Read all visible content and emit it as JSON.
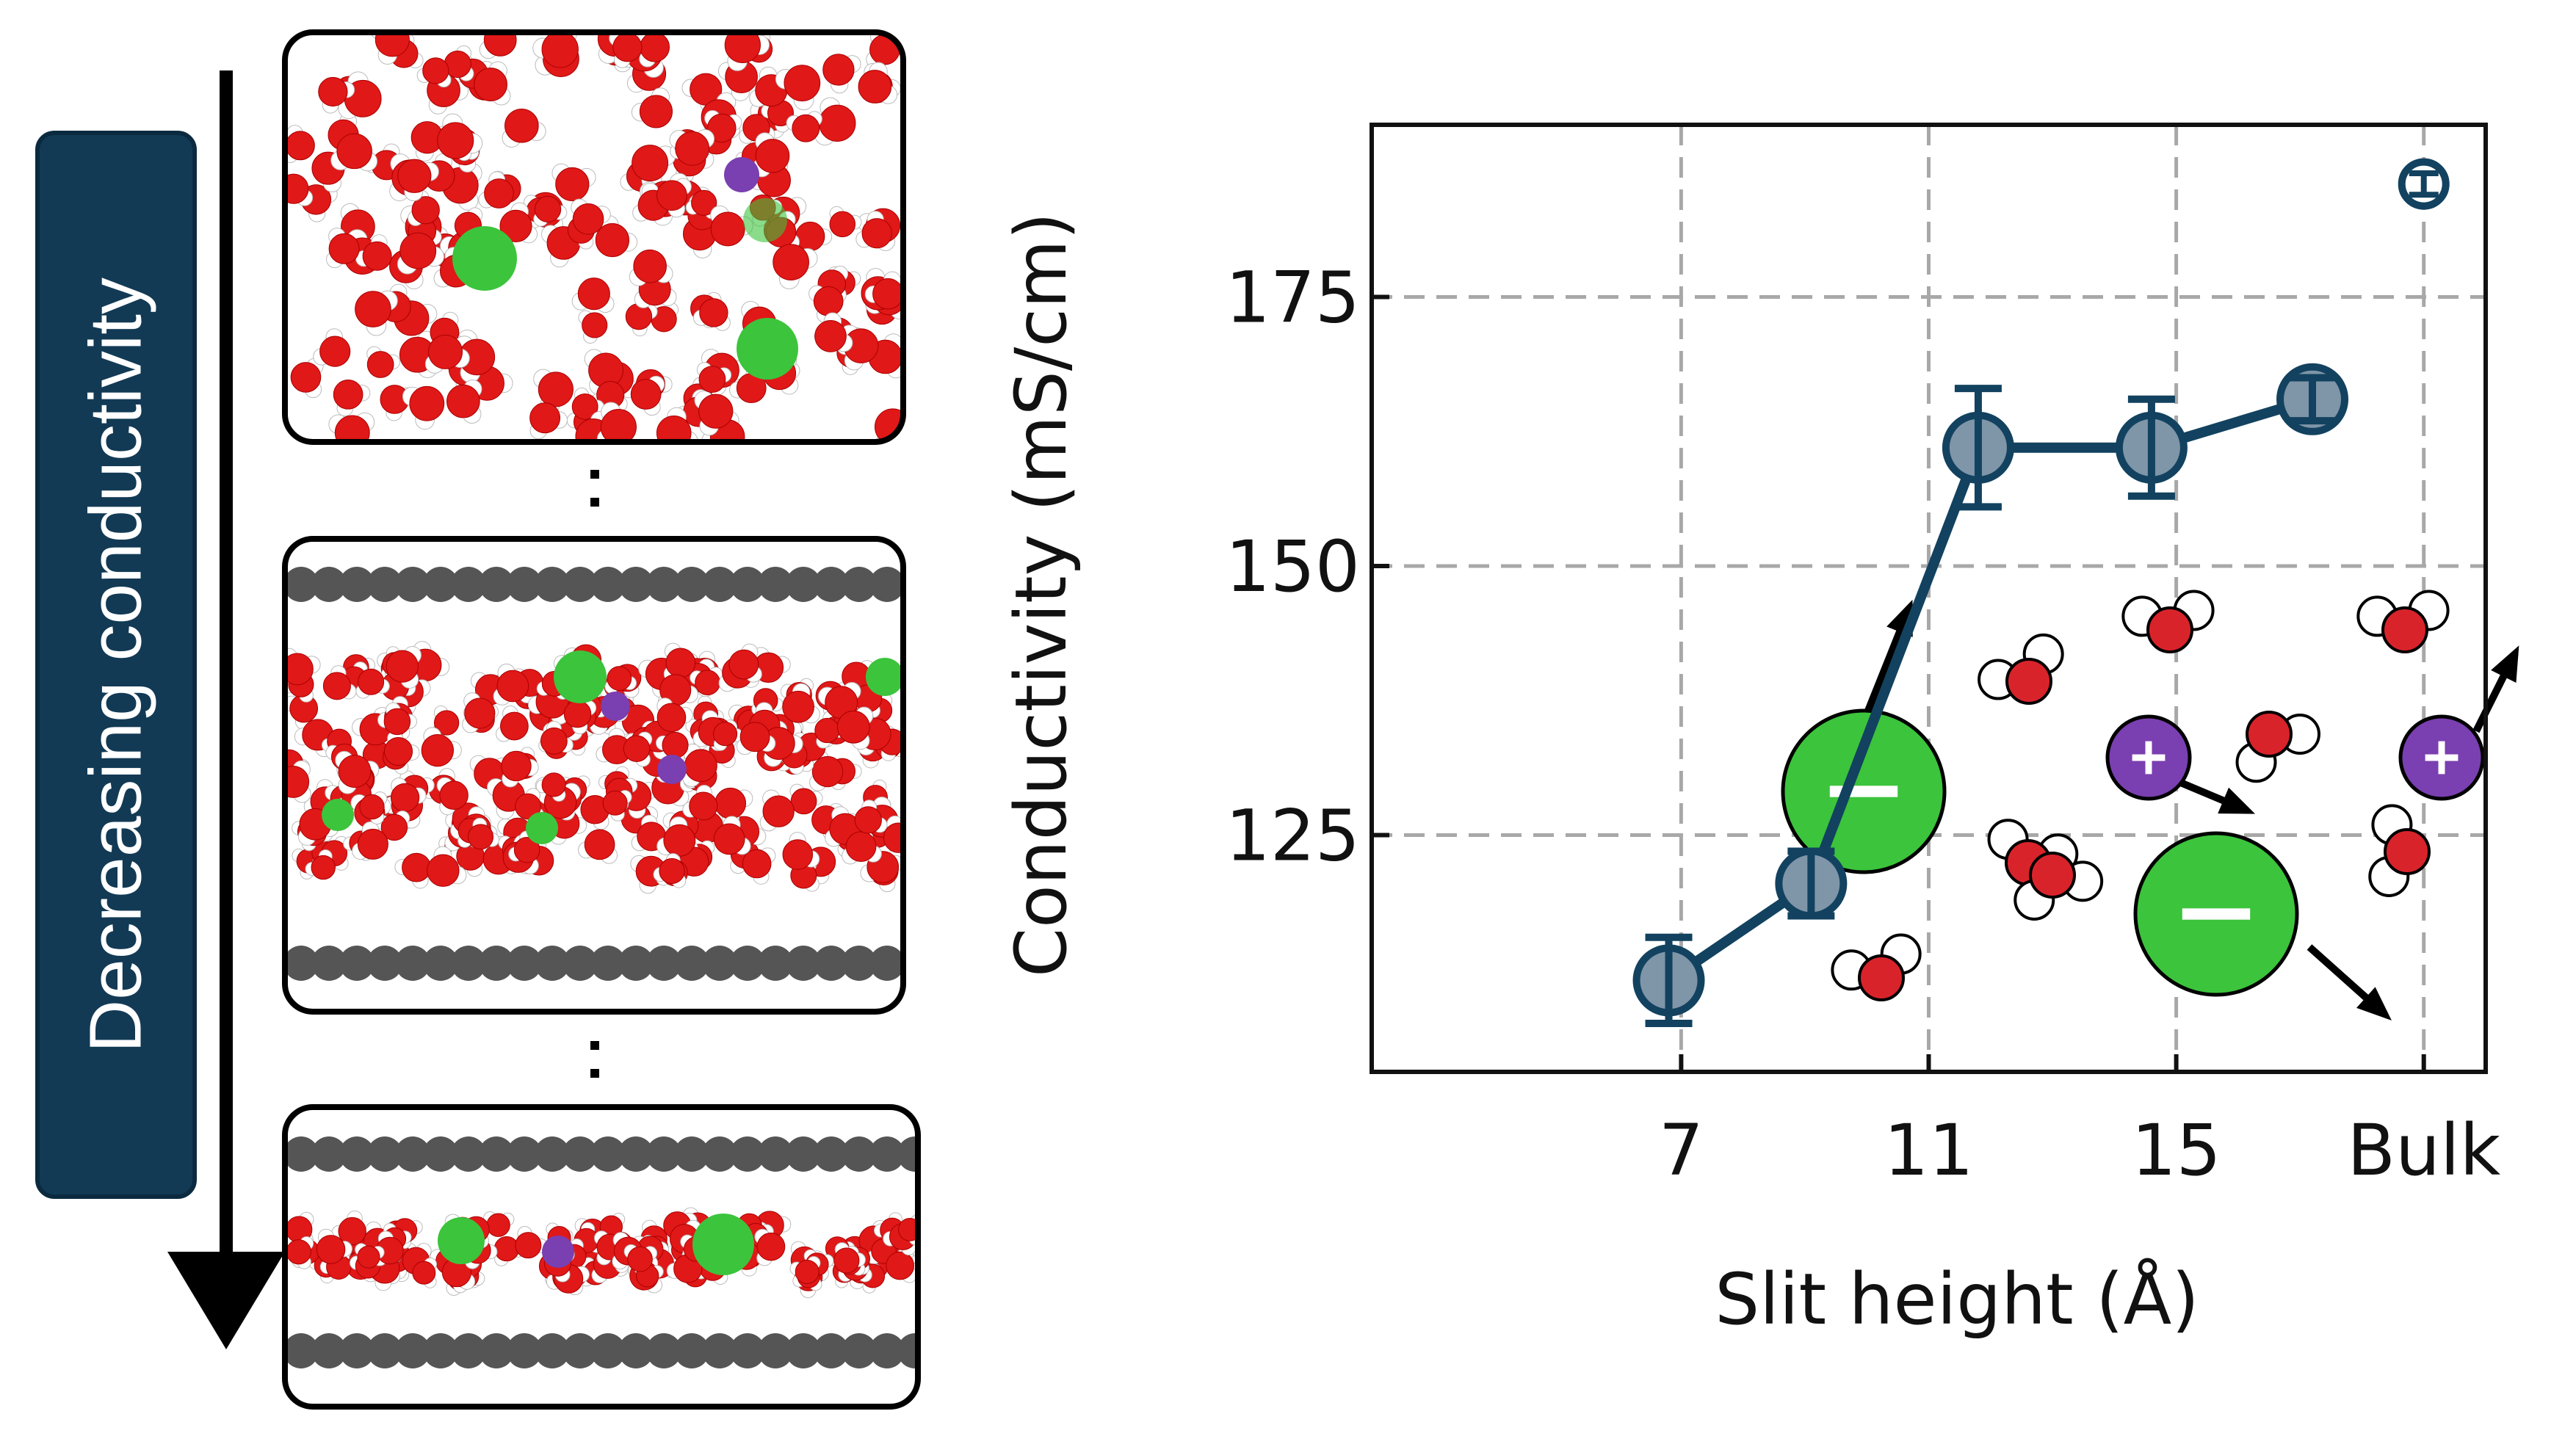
{
  "side_label": "Decreasing conductivity",
  "chart_data": {
    "type": "line",
    "x_tick_labels": [
      "7",
      "11",
      "15",
      "Bulk"
    ],
    "x_tick_values": [
      7,
      11,
      15,
      19
    ],
    "x_range": [
      2,
      20
    ],
    "ylabel": "Conductivity (mS/cm)",
    "xlabel": "Slit height (Å)",
    "y_ticks": [
      125,
      150,
      175
    ],
    "ylim": [
      103,
      191
    ],
    "grid": true,
    "series": [
      {
        "color": "#12425f",
        "marker": "circle",
        "points": [
          {
            "x": 6.8,
            "y": 111.5,
            "err": 4.0
          },
          {
            "x": 9.1,
            "y": 120.5,
            "err": 3.0
          },
          {
            "x": 11.8,
            "y": 161.0,
            "err": 5.5
          },
          {
            "x": 14.6,
            "y": 161.0,
            "err": 4.5
          },
          {
            "x": 17.2,
            "y": 165.5,
            "err": 2.0
          }
        ]
      }
    ],
    "bulk_point": {
      "x": 19,
      "y": 185.5,
      "err": 1.0
    }
  },
  "panels": {
    "top_label": "bulk",
    "middle_label": "wide slit",
    "bottom_label": "narrow slit"
  },
  "colors": {
    "oxygen": "#e01818",
    "hydrogen": "#ffffff",
    "chloride": "#3cc43c",
    "sodium": "#7a3fb0",
    "carbon": "#555555",
    "series": "#12425f"
  },
  "icons": {
    "cation_symbol": "+",
    "anion_symbol": "−"
  }
}
